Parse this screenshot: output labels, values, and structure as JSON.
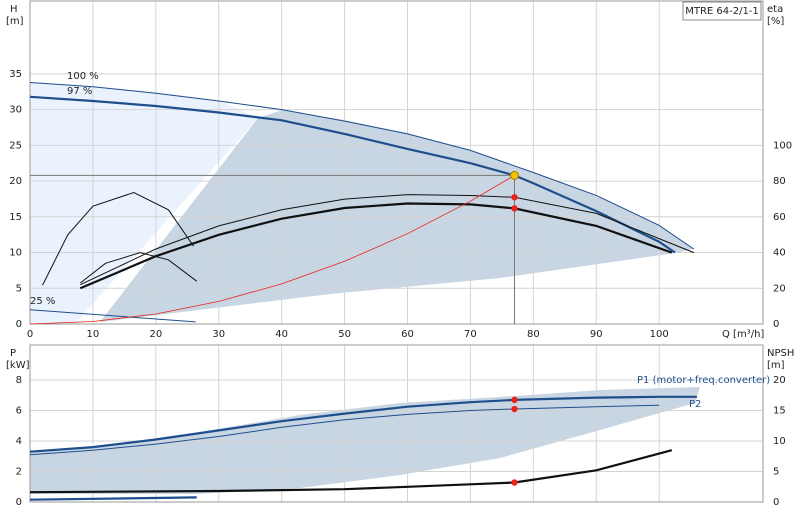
{
  "chart_data": [
    {
      "type": "line",
      "title": "MTRE 64-2/1-1",
      "ylabel": "H",
      "yunit": "[m]",
      "y2label": "eta",
      "y2unit": "[%]",
      "xlabel": "Q [m³/h]",
      "xlim": [
        0,
        116.5
      ],
      "xticks": [
        0,
        10,
        20,
        30,
        40,
        50,
        60,
        70,
        80,
        90,
        100
      ],
      "ylim": [
        0,
        45.2
      ],
      "yticks": [
        0,
        5,
        10,
        15,
        20,
        25,
        30,
        35
      ],
      "y2lim": [
        0,
        181
      ],
      "y2ticks": [
        0,
        20,
        40,
        60,
        80,
        100
      ],
      "grid": true,
      "xtick_labels": true,
      "series": [
        {
          "name": "100 %",
          "color": "#1f4e8c",
          "weight": "thin",
          "x": [
            0,
            10,
            20,
            30,
            40,
            50,
            60,
            70,
            80,
            90,
            100,
            105.5
          ],
          "values": [
            33.8,
            33.2,
            32.3,
            31.2,
            30,
            28.4,
            26.6,
            24.3,
            21.2,
            18,
            13.8,
            10.5
          ]
        },
        {
          "name": "97 %",
          "color": "#1f4e8c",
          "weight": "thick",
          "x": [
            0,
            10,
            20,
            30,
            40,
            50,
            60,
            70,
            77,
            80,
            90,
            100,
            102.5
          ],
          "values": [
            31.8,
            31.2,
            30.5,
            29.6,
            28.5,
            26.6,
            24.5,
            22.5,
            20.8,
            19.7,
            15.8,
            11.5,
            10
          ]
        },
        {
          "name": "25 %",
          "color": "#1f4e8c",
          "weight": "thin",
          "x": [
            0,
            26.3
          ],
          "values": [
            2,
            0.3
          ]
        },
        {
          "color": "#111111",
          "weight": "thin",
          "axis": "y2",
          "x": [
            8,
            20,
            30,
            40,
            50,
            60,
            70,
            77,
            90,
            105.5
          ],
          "values": [
            22,
            42,
            55,
            64,
            70,
            72.5,
            72,
            71,
            62,
            40
          ]
        },
        {
          "color": "#111111",
          "weight": "thick",
          "axis": "y2",
          "x": [
            8,
            20,
            30,
            40,
            50,
            60,
            70,
            77,
            90,
            102
          ],
          "values": [
            20,
            38,
            50,
            59,
            65,
            67.5,
            67,
            64.8,
            55,
            40
          ]
        },
        {
          "color": "#111111",
          "weight": "thin",
          "axis": "y2",
          "x": [
            2,
            6,
            10,
            16.5,
            22,
            26
          ],
          "values": [
            21.8,
            50,
            66,
            73.7,
            64,
            43.6
          ]
        },
        {
          "color": "#111111",
          "weight": "thin",
          "axis": "y2",
          "x": [
            8,
            12,
            17.5,
            22,
            26.5
          ],
          "values": [
            23,
            34,
            40,
            36,
            24
          ]
        },
        {
          "color": "#e8231c",
          "weight": "hair",
          "x": [
            0,
            10,
            20,
            30,
            40,
            50,
            60,
            70,
            77
          ],
          "values": [
            0,
            0.35,
            1.4,
            3.16,
            5.61,
            8.77,
            12.63,
            17.19,
            20.8
          ]
        }
      ],
      "markers": [
        {
          "x": 77,
          "y": 20.8,
          "color": "#f5c400",
          "guides": true
        },
        {
          "x": 77,
          "y": 71,
          "color": "#e8231c",
          "axis": "y2"
        },
        {
          "x": 77,
          "y": 64.8,
          "color": "#e8231c",
          "axis": "y2"
        }
      ]
    },
    {
      "type": "line",
      "ylabel": "P",
      "yunit": "[kW]",
      "y2label": "NPSH",
      "y2unit": "[m]",
      "xlim": [
        0,
        116.5
      ],
      "xticks": [
        0,
        10,
        20,
        30,
        40,
        50,
        60,
        70,
        80,
        90,
        100
      ],
      "ylim": [
        0,
        10.3
      ],
      "yticks": [
        0,
        2,
        4,
        6,
        8
      ],
      "y2lim": [
        0,
        25.75
      ],
      "y2ticks": [
        0,
        5,
        10,
        15,
        20
      ],
      "grid": true,
      "xtick_labels": false,
      "series": [
        {
          "name": "P1 (motor+freq.converter)",
          "color": "#1f4e8c",
          "weight": "thick",
          "x": [
            0,
            10,
            20,
            30,
            40,
            50,
            60,
            70,
            77,
            90,
            100,
            106
          ],
          "values": [
            3.3,
            3.6,
            4.1,
            4.7,
            5.3,
            5.8,
            6.25,
            6.55,
            6.7,
            6.85,
            6.9,
            6.9
          ]
        },
        {
          "name": "P2",
          "color": "#1f4e8c",
          "weight": "thin",
          "x": [
            0,
            10,
            20,
            30,
            40,
            50,
            60,
            70,
            77,
            90,
            100
          ],
          "values": [
            3.1,
            3.4,
            3.8,
            4.3,
            4.9,
            5.4,
            5.75,
            6,
            6.1,
            6.25,
            6.35
          ]
        },
        {
          "color": "#1f4e8c",
          "weight": "thick",
          "x": [
            0,
            26.5
          ],
          "values": [
            0.15,
            0.3
          ]
        },
        {
          "color": "#111111",
          "weight": "thick",
          "axis": "y2",
          "x": [
            0,
            30,
            50,
            60,
            70,
            77,
            90,
            102
          ],
          "values": [
            1.6,
            1.8,
            2.1,
            2.5,
            2.9,
            3.2,
            5.2,
            8.5
          ]
        }
      ],
      "markers": [
        {
          "x": 77,
          "y": 6.7,
          "color": "#e8231c"
        },
        {
          "x": 77,
          "y": 6.1,
          "color": "#e8231c"
        },
        {
          "x": 77,
          "y": 3.2,
          "color": "#e8231c",
          "axis": "y2"
        }
      ]
    }
  ]
}
